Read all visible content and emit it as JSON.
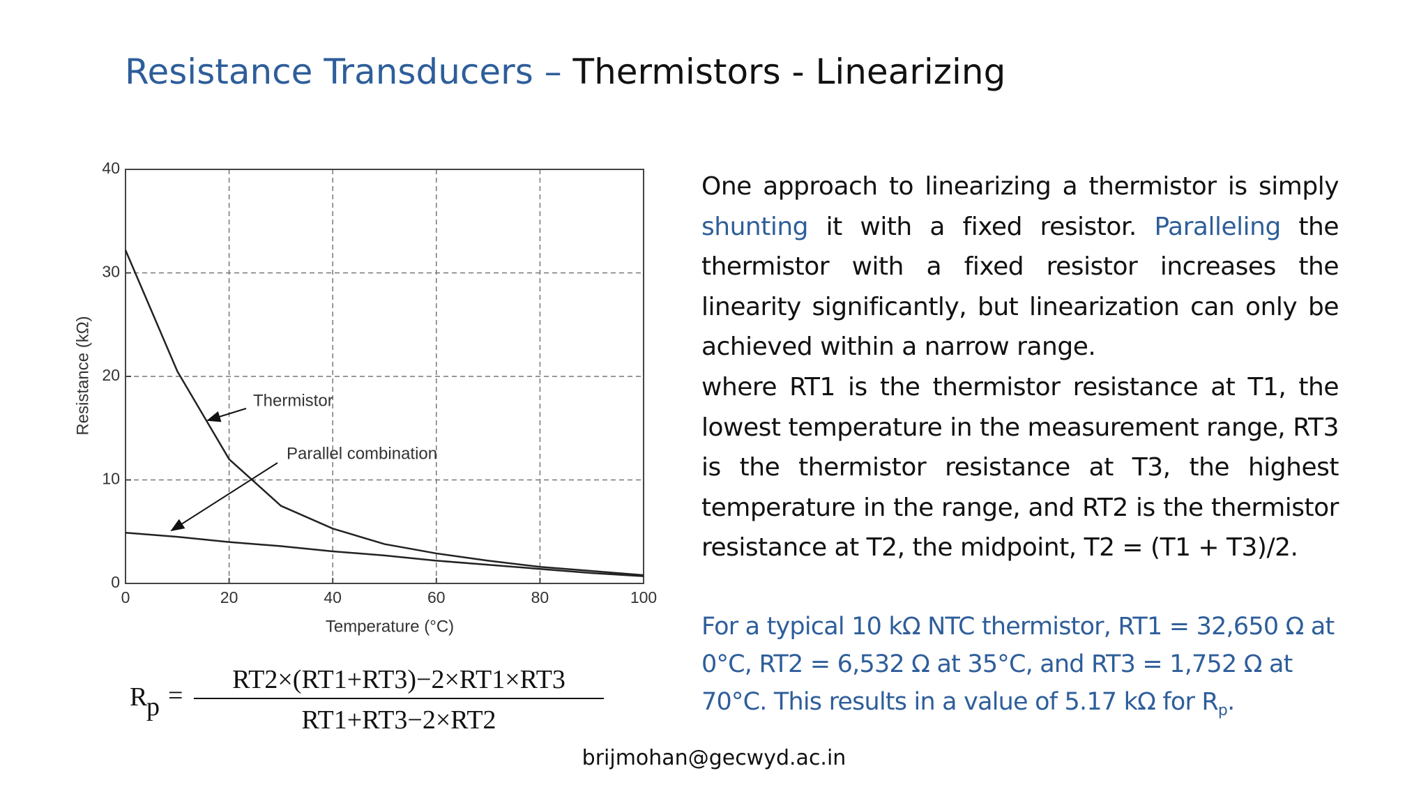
{
  "title": {
    "main": "Resistance Transducers –",
    "sub": "Thermistors - Linearizing"
  },
  "chart_data": {
    "type": "line",
    "x": [
      0,
      10,
      20,
      30,
      40,
      50,
      60,
      70,
      80,
      90,
      100
    ],
    "series": [
      {
        "name": "Thermistor",
        "color": "#222222",
        "values": [
          32.2,
          20.5,
          12,
          7.5,
          5.3,
          3.8,
          2.9,
          2.2,
          1.6,
          1.2,
          0.8
        ]
      },
      {
        "name": "Parallel combination",
        "color": "#222222",
        "values": [
          4.9,
          4.5,
          4.0,
          3.6,
          3.1,
          2.7,
          2.2,
          1.8,
          1.4,
          1.0,
          0.7
        ]
      }
    ],
    "xlabel": "Temperature (°C)",
    "ylabel": "Resistance (kΩ)",
    "xlim": [
      0,
      100
    ],
    "xticks": [
      0,
      20,
      40,
      60,
      80,
      100
    ],
    "ylim": [
      0,
      40
    ],
    "yticks": [
      0,
      10,
      20,
      30,
      40
    ],
    "grid": true
  },
  "paragraph1": {
    "segments": [
      "One approach to linearizing a thermistor is simply ",
      "shunting",
      " it with a fixed resistor. ",
      "Paralleling",
      " the thermistor with a fixed resistor increases the linearity significantly, but linearization can only be achieved within a narrow range."
    ]
  },
  "paragraph2": "where RT1 is the thermistor resistance at T1, the lowest temperature in the measurement range, RT3 is the thermistor resistance at T3, the highest temperature in the range, and RT2 is the thermistor resistance at T2, the midpoint, T2 = (T1 + T3)/2.",
  "note": {
    "text": "For a typical 10 kΩ NTC thermistor, RT1 = 32,650 Ω at 0°C, RT2 = 6,532 Ω at 35°C, and RT3 = 1,752 Ω at 70°C. This results in a value of 5.17 kΩ for R",
    "sub": "p",
    "end": "."
  },
  "formula": {
    "lhs": "R",
    "lhs_sub": "p",
    "equals": "=",
    "numerator": "RT2×(RT1+RT3)−2×RT1×RT3",
    "denominator": "RT1+RT3−2×RT2"
  },
  "footer": "brijmohan@gecwyd.ac.in"
}
